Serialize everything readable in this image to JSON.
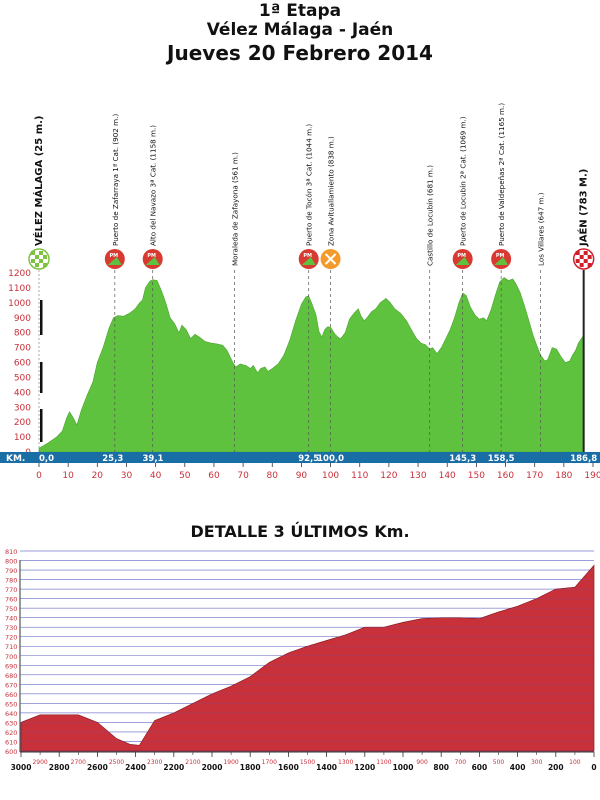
{
  "header": {
    "stage": "1ª Etapa",
    "route": "Vélez Málaga - Jaén",
    "date": "Jueves 20 Febrero 2014"
  },
  "detail_title": "DETALLE 3 ÚLTIMOS Km.",
  "colors": {
    "profile_fill": "#5fc23f",
    "detail_fill": "#c8313a",
    "km_bar": "#1a6ea6",
    "axis_text": "#c8313a",
    "grid_line": "#5b5bbf",
    "sprint_icon": "#e0453a",
    "climb_icon": "#d83a32",
    "feed_icon": "#f39a2a",
    "finish_icon": "#d01f2a",
    "start_icon": "#7fc241"
  },
  "chart_data": [
    {
      "type": "area",
      "title": "",
      "km_label": "KM.",
      "xlim": [
        0,
        190
      ],
      "ylim": [
        0,
        1200
      ],
      "x_ticks": [
        0,
        10,
        20,
        30,
        40,
        50,
        60,
        70,
        80,
        90,
        100,
        110,
        120,
        130,
        140,
        150,
        160,
        170,
        180,
        190
      ],
      "y_ticks": [
        0,
        100,
        200,
        300,
        400,
        500,
        600,
        700,
        800,
        900,
        1000,
        1100,
        1200
      ],
      "km_markers": [
        {
          "km": 0,
          "label": "0,0"
        },
        {
          "km": 25.3,
          "label": "25,3"
        },
        {
          "km": 39.1,
          "label": "39,1"
        },
        {
          "km": 92.5,
          "label": "92,5"
        },
        {
          "km": 100.0,
          "label": "100,0"
        },
        {
          "km": 145.3,
          "label": "145,3"
        },
        {
          "km": 158.5,
          "label": "158,5"
        },
        {
          "km": 186.8,
          "label": "186,8"
        }
      ],
      "points": [
        {
          "km": 0,
          "label": "VÉLEZ MÁLAGA (25 m.)",
          "icon": "start"
        },
        {
          "km": 26,
          "label": "Puerto de Zafarraya 1ª Cat. (902 m.)",
          "icon": "climb"
        },
        {
          "km": 39,
          "label": "Alto del Navazo 3ª Cat. (1158 m.)",
          "icon": "climb"
        },
        {
          "km": 67,
          "label": "Moraleda de Zafayona (561 m.)",
          "icon": ""
        },
        {
          "km": 92.5,
          "label": "Puerto de Tocón 3ª Cat. (1044 m.)",
          "icon": "climb"
        },
        {
          "km": 100,
          "label": "Zona Avituallamiento (838 m.)",
          "icon": "feed"
        },
        {
          "km": 134,
          "label": "Castillo de Locubín (681 m.)",
          "icon": ""
        },
        {
          "km": 145.3,
          "label": "Puerto de Locubín 2ª Cat. (1069 m.)",
          "icon": "climb"
        },
        {
          "km": 158.5,
          "label": "Puerto de Valdepeñas 2ª Cat. (1165 m.)",
          "icon": "climb"
        },
        {
          "km": 172,
          "label": "Los Villares (647 m.)",
          "icon": ""
        },
        {
          "km": 186.8,
          "label": "JAÉN (783 M.)",
          "icon": "finish"
        }
      ],
      "icon_labels": {
        "climb_cat": "PM"
      },
      "profile": [
        [
          0,
          25
        ],
        [
          3,
          60
        ],
        [
          6,
          100
        ],
        [
          8,
          140
        ],
        [
          9.5,
          230
        ],
        [
          10.5,
          270
        ],
        [
          12,
          220
        ],
        [
          13,
          180
        ],
        [
          14.5,
          280
        ],
        [
          16.5,
          380
        ],
        [
          18.5,
          470
        ],
        [
          20,
          600
        ],
        [
          22,
          700
        ],
        [
          24,
          830
        ],
        [
          25.5,
          900
        ],
        [
          27,
          915
        ],
        [
          29,
          910
        ],
        [
          31,
          930
        ],
        [
          33,
          960
        ],
        [
          34.5,
          1000
        ],
        [
          35.5,
          1020
        ],
        [
          36.5,
          1100
        ],
        [
          38,
          1145
        ],
        [
          39,
          1155
        ],
        [
          40.5,
          1150
        ],
        [
          42,
          1080
        ],
        [
          43.5,
          1000
        ],
        [
          45,
          900
        ],
        [
          46.5,
          860
        ],
        [
          48,
          800
        ],
        [
          49,
          850
        ],
        [
          50.5,
          820
        ],
        [
          52,
          760
        ],
        [
          53.5,
          790
        ],
        [
          55,
          770
        ],
        [
          57,
          740
        ],
        [
          59,
          730
        ],
        [
          61,
          725
        ],
        [
          63,
          715
        ],
        [
          64.5,
          680
        ],
        [
          65.5,
          640
        ],
        [
          66.5,
          600
        ],
        [
          67.5,
          570
        ],
        [
          69,
          590
        ],
        [
          71,
          580
        ],
        [
          72.5,
          560
        ],
        [
          73.5,
          580
        ],
        [
          75,
          530
        ],
        [
          76,
          560
        ],
        [
          77.5,
          570
        ],
        [
          78.5,
          540
        ],
        [
          80,
          560
        ],
        [
          82,
          590
        ],
        [
          84,
          650
        ],
        [
          86,
          750
        ],
        [
          88,
          880
        ],
        [
          90,
          990
        ],
        [
          91.5,
          1040
        ],
        [
          92.5,
          1045
        ],
        [
          93.5,
          1000
        ],
        [
          95,
          920
        ],
        [
          96,
          810
        ],
        [
          97,
          770
        ],
        [
          98,
          820
        ],
        [
          99,
          840
        ],
        [
          100,
          835
        ],
        [
          101.5,
          790
        ],
        [
          102.5,
          770
        ],
        [
          103.5,
          760
        ],
        [
          105,
          800
        ],
        [
          106.5,
          890
        ],
        [
          108,
          930
        ],
        [
          109.5,
          960
        ],
        [
          110.5,
          910
        ],
        [
          111.5,
          880
        ],
        [
          112.5,
          900
        ],
        [
          114,
          940
        ],
        [
          115.5,
          960
        ],
        [
          117,
          1000
        ],
        [
          119,
          1030
        ],
        [
          120.5,
          1000
        ],
        [
          122,
          960
        ],
        [
          124,
          930
        ],
        [
          126,
          880
        ],
        [
          128,
          810
        ],
        [
          129.5,
          760
        ],
        [
          131,
          730
        ],
        [
          132.5,
          720
        ],
        [
          134,
          690
        ],
        [
          135,
          700
        ],
        [
          136.5,
          660
        ],
        [
          138,
          700
        ],
        [
          139.5,
          760
        ],
        [
          141,
          820
        ],
        [
          142.5,
          900
        ],
        [
          144,
          1000
        ],
        [
          145.3,
          1065
        ],
        [
          146.5,
          1050
        ],
        [
          148,
          970
        ],
        [
          149.5,
          920
        ],
        [
          151,
          890
        ],
        [
          152.5,
          900
        ],
        [
          153.5,
          880
        ],
        [
          155,
          950
        ],
        [
          156.5,
          1050
        ],
        [
          158,
          1140
        ],
        [
          159.5,
          1170
        ],
        [
          161,
          1150
        ],
        [
          162.5,
          1160
        ],
        [
          163.5,
          1130
        ],
        [
          165,
          1070
        ],
        [
          166.5,
          980
        ],
        [
          168,
          880
        ],
        [
          169.5,
          780
        ],
        [
          171,
          700
        ],
        [
          172,
          650
        ],
        [
          173.5,
          610
        ],
        [
          174.5,
          620
        ],
        [
          176,
          700
        ],
        [
          177.5,
          690
        ],
        [
          179,
          640
        ],
        [
          180.5,
          600
        ],
        [
          182,
          610
        ],
        [
          183,
          650
        ],
        [
          184,
          680
        ],
        [
          185,
          730
        ],
        [
          186,
          760
        ],
        [
          186.8,
          783
        ]
      ]
    },
    {
      "type": "area",
      "title": "DETALLE 3 ÚLTIMOS Km.",
      "xlim": [
        3000,
        0
      ],
      "ylim": [
        600,
        810
      ],
      "x_ticks_major": [
        3000,
        2800,
        2600,
        2400,
        2200,
        2000,
        1800,
        1600,
        1400,
        1200,
        1000,
        800,
        600,
        400,
        200,
        0
      ],
      "x_ticks_minor": [
        2900,
        2700,
        2500,
        2300,
        2100,
        1900,
        1700,
        1500,
        1300,
        1100,
        900,
        700,
        500,
        300,
        100
      ],
      "y_ticks": [
        600,
        610,
        620,
        630,
        640,
        650,
        660,
        670,
        680,
        690,
        700,
        710,
        720,
        730,
        740,
        750,
        760,
        770,
        780,
        790,
        800,
        810
      ],
      "profile": [
        [
          3000,
          630
        ],
        [
          2900,
          638
        ],
        [
          2700,
          638
        ],
        [
          2600,
          630
        ],
        [
          2500,
          613
        ],
        [
          2430,
          607
        ],
        [
          2380,
          606
        ],
        [
          2300,
          632
        ],
        [
          2200,
          640
        ],
        [
          2100,
          650
        ],
        [
          2000,
          660
        ],
        [
          1900,
          668
        ],
        [
          1800,
          678
        ],
        [
          1700,
          693
        ],
        [
          1600,
          703
        ],
        [
          1500,
          710
        ],
        [
          1400,
          716
        ],
        [
          1300,
          722
        ],
        [
          1200,
          730
        ],
        [
          1100,
          730
        ],
        [
          1000,
          735
        ],
        [
          900,
          739
        ],
        [
          800,
          740
        ],
        [
          700,
          740
        ],
        [
          600,
          739
        ],
        [
          500,
          746
        ],
        [
          400,
          752
        ],
        [
          300,
          760
        ],
        [
          200,
          770
        ],
        [
          100,
          772
        ],
        [
          0,
          795
        ]
      ]
    }
  ]
}
